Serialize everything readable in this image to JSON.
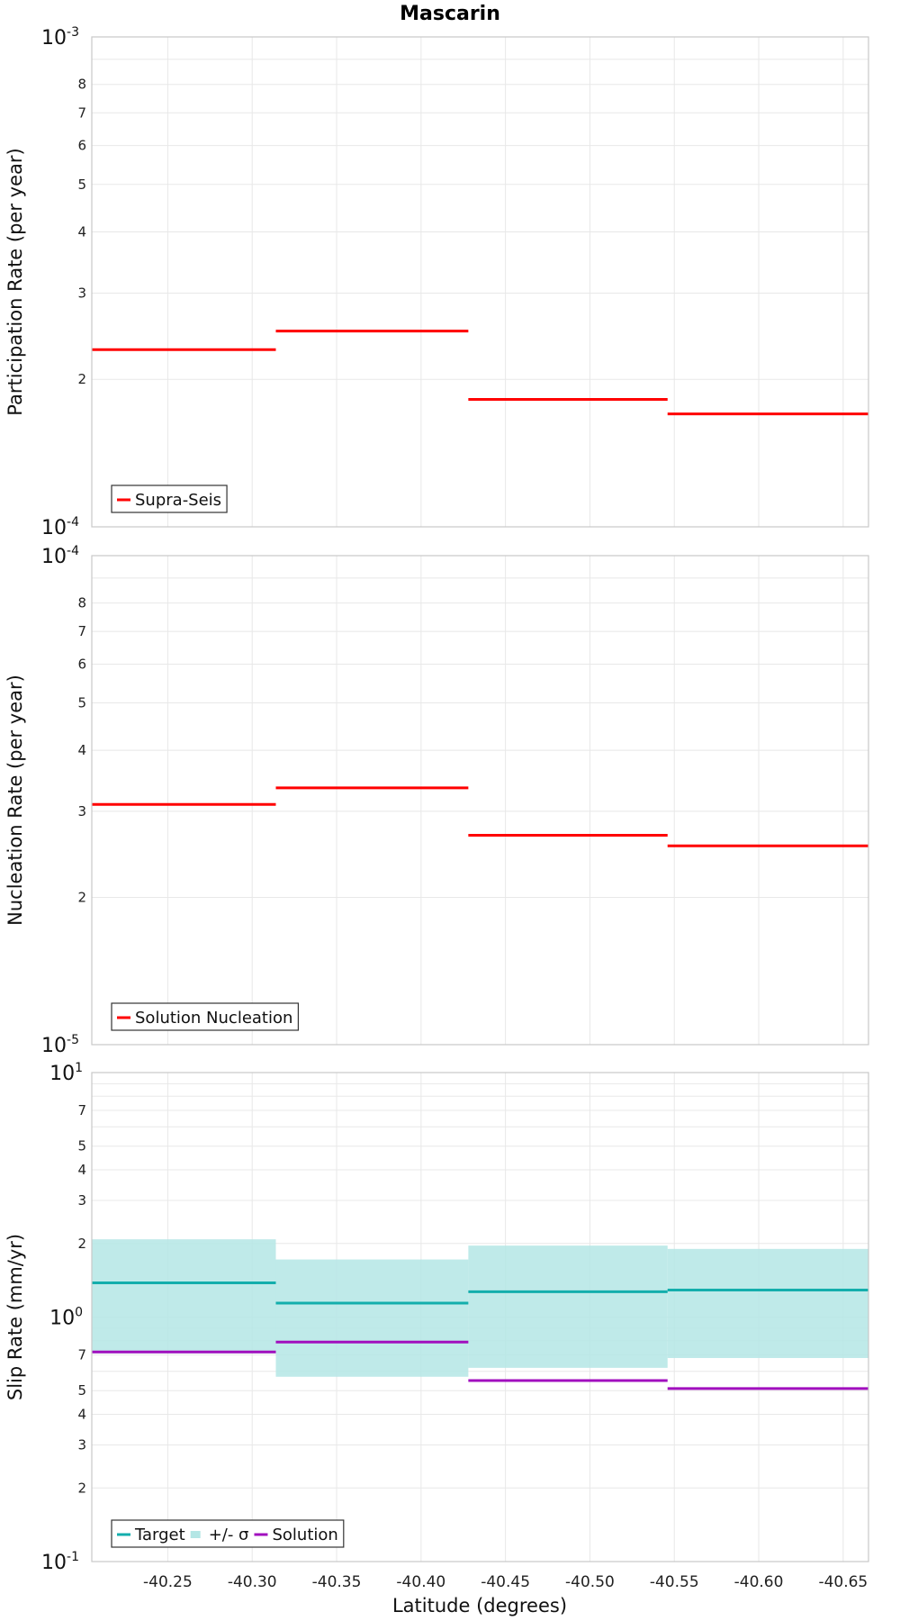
{
  "colors": {
    "red": "#ff0000",
    "teal": "#13aeac",
    "band": "#b4e6e5",
    "purple": "#a10fbe"
  },
  "chart_data": [
    {
      "type": "line",
      "title": "Mascarin",
      "ylabel": "Participation Rate (per year)",
      "xlabel": "",
      "yscale": "log",
      "ylim": [
        0.0001,
        0.001
      ],
      "xlim": [
        -40.205,
        -40.665
      ],
      "grid": true,
      "legend_position": "bottom-left",
      "ytick_minor_labels": [
        "2",
        "3",
        "4",
        "5",
        "6",
        "7",
        "8"
      ],
      "ytick_major": [
        {
          "base": "10",
          "exp": "-3"
        },
        {
          "base": "10",
          "exp": "-4"
        }
      ],
      "series": [
        {
          "name": "Supra-Seis",
          "color": "#ff0000",
          "style": "step",
          "segments": [
            {
              "x0": -40.205,
              "x1": -40.314,
              "y": 0.00023
            },
            {
              "x0": -40.314,
              "x1": -40.428,
              "y": 0.000251
            },
            {
              "x0": -40.428,
              "x1": -40.546,
              "y": 0.000182
            },
            {
              "x0": -40.546,
              "x1": -40.665,
              "y": 0.00017
            }
          ]
        }
      ]
    },
    {
      "type": "line",
      "ylabel": "Nucleation Rate (per year)",
      "xlabel": "",
      "yscale": "log",
      "ylim": [
        1e-05,
        0.0001
      ],
      "xlim": [
        -40.205,
        -40.665
      ],
      "grid": true,
      "legend_position": "bottom-left",
      "ytick_minor_labels": [
        "2",
        "3",
        "4",
        "5",
        "6",
        "7",
        "8"
      ],
      "ytick_major": [
        {
          "base": "10",
          "exp": "-4"
        },
        {
          "base": "10",
          "exp": "-5"
        }
      ],
      "series": [
        {
          "name": "Solution Nucleation",
          "color": "#ff0000",
          "style": "step",
          "segments": [
            {
              "x0": -40.205,
              "x1": -40.314,
              "y": 3.1e-05
            },
            {
              "x0": -40.314,
              "x1": -40.428,
              "y": 3.35e-05
            },
            {
              "x0": -40.428,
              "x1": -40.546,
              "y": 2.68e-05
            },
            {
              "x0": -40.546,
              "x1": -40.665,
              "y": 2.55e-05
            }
          ]
        }
      ]
    },
    {
      "type": "line",
      "ylabel": "Slip Rate (mm/yr)",
      "xlabel": "Latitude (degrees)",
      "yscale": "log",
      "ylim": [
        0.1,
        10
      ],
      "xlim": [
        -40.205,
        -40.665
      ],
      "grid": true,
      "legend_position": "bottom-left",
      "xticks": [
        "-40.25",
        "-40.30",
        "-40.35",
        "-40.40",
        "-40.45",
        "-40.50",
        "-40.55",
        "-40.60",
        "-40.65"
      ],
      "ytick_minor_labels_low": [
        "2",
        "3",
        "4",
        "5",
        "7"
      ],
      "ytick_minor_labels_high": [
        "2",
        "3",
        "4",
        "5",
        "7"
      ],
      "ytick_major": [
        {
          "base": "10",
          "exp": "1"
        },
        {
          "base": "10",
          "exp": "0"
        },
        {
          "base": "10",
          "exp": "-1"
        }
      ],
      "series": [
        {
          "name": "Target",
          "color": "#13aeac",
          "style": "step",
          "segments": [
            {
              "x0": -40.205,
              "x1": -40.314,
              "y": 1.38
            },
            {
              "x0": -40.314,
              "x1": -40.428,
              "y": 1.14
            },
            {
              "x0": -40.428,
              "x1": -40.546,
              "y": 1.27
            },
            {
              "x0": -40.546,
              "x1": -40.665,
              "y": 1.29
            }
          ]
        },
        {
          "name": "+/- σ",
          "color": "#b4e6e5",
          "style": "band",
          "segments": [
            {
              "x0": -40.205,
              "x1": -40.314,
              "ylo": 0.71,
              "yhi": 2.08
            },
            {
              "x0": -40.314,
              "x1": -40.428,
              "ylo": 0.57,
              "yhi": 1.72
            },
            {
              "x0": -40.428,
              "x1": -40.546,
              "ylo": 0.62,
              "yhi": 1.96
            },
            {
              "x0": -40.546,
              "x1": -40.665,
              "ylo": 0.68,
              "yhi": 1.9
            }
          ]
        },
        {
          "name": "Solution",
          "color": "#a10fbe",
          "style": "step",
          "segments": [
            {
              "x0": -40.205,
              "x1": -40.314,
              "y": 0.72
            },
            {
              "x0": -40.314,
              "x1": -40.428,
              "y": 0.79
            },
            {
              "x0": -40.428,
              "x1": -40.546,
              "y": 0.55
            },
            {
              "x0": -40.546,
              "x1": -40.665,
              "y": 0.51
            }
          ]
        }
      ]
    }
  ]
}
